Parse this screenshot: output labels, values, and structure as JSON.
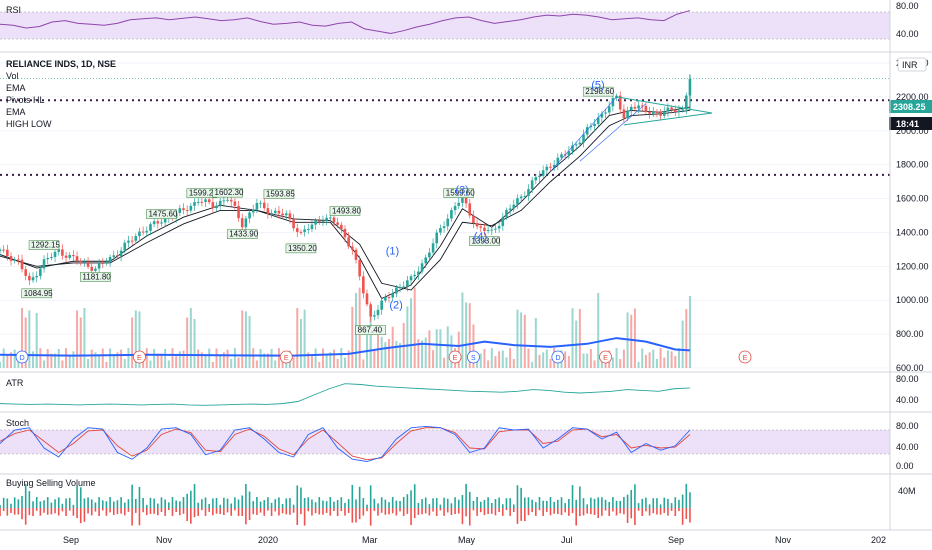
{
  "chart_data": {
    "type": "candlestick",
    "symbol_label": "RELIANCE INDS, 1D, NSE",
    "overlay_legend": [
      "Vol",
      "EMA",
      "Pivots HL",
      "EMA",
      "HIGH LOW"
    ],
    "currency_label": "INR",
    "last_price": "2308.25",
    "countdown": "18:41",
    "price_axis": {
      "ticks": [
        "2400.00",
        "2200.00",
        "2000.00",
        "1800.00",
        "1600.00",
        "1400.00",
        "1200.00",
        "1000.00",
        "800.00",
        "600.00"
      ],
      "range": [
        600,
        2400
      ]
    },
    "time_axis": {
      "ticks": [
        "Sep",
        "Nov",
        "2020",
        "Mar",
        "May",
        "Jul",
        "Sep",
        "Nov",
        "202"
      ]
    },
    "price_path": [
      {
        "t": 0,
        "c": 1290
      },
      {
        "t": 5,
        "c": 1230
      },
      {
        "t": 8,
        "c": 1100
      },
      {
        "t": 12,
        "c": 1230
      },
      {
        "t": 16,
        "c": 1290
      },
      {
        "t": 22,
        "c": 1225
      },
      {
        "t": 26,
        "c": 1185
      },
      {
        "t": 32,
        "c": 1280
      },
      {
        "t": 38,
        "c": 1400
      },
      {
        "t": 44,
        "c": 1470
      },
      {
        "t": 50,
        "c": 1530
      },
      {
        "t": 54,
        "c": 1590
      },
      {
        "t": 58,
        "c": 1560
      },
      {
        "t": 62,
        "c": 1600
      },
      {
        "t": 64,
        "c": 1540
      },
      {
        "t": 66,
        "c": 1450
      },
      {
        "t": 70,
        "c": 1570
      },
      {
        "t": 74,
        "c": 1520
      },
      {
        "t": 78,
        "c": 1500
      },
      {
        "t": 82,
        "c": 1390
      },
      {
        "t": 86,
        "c": 1460
      },
      {
        "t": 88,
        "c": 1490
      },
      {
        "t": 92,
        "c": 1450
      },
      {
        "t": 96,
        "c": 1300
      },
      {
        "t": 99,
        "c": 1050
      },
      {
        "t": 101,
        "c": 900
      },
      {
        "t": 104,
        "c": 980
      },
      {
        "t": 108,
        "c": 1070
      },
      {
        "t": 112,
        "c": 1120
      },
      {
        "t": 116,
        "c": 1250
      },
      {
        "t": 120,
        "c": 1420
      },
      {
        "t": 124,
        "c": 1560
      },
      {
        "t": 126,
        "c": 1600
      },
      {
        "t": 130,
        "c": 1430
      },
      {
        "t": 134,
        "c": 1400
      },
      {
        "t": 138,
        "c": 1520
      },
      {
        "t": 142,
        "c": 1610
      },
      {
        "t": 146,
        "c": 1720
      },
      {
        "t": 150,
        "c": 1800
      },
      {
        "t": 154,
        "c": 1860
      },
      {
        "t": 158,
        "c": 1950
      },
      {
        "t": 162,
        "c": 2050
      },
      {
        "t": 166,
        "c": 2150
      },
      {
        "t": 168,
        "c": 2195
      },
      {
        "t": 170,
        "c": 2080
      },
      {
        "t": 172,
        "c": 2150
      },
      {
        "t": 176,
        "c": 2120
      },
      {
        "t": 180,
        "c": 2100
      },
      {
        "t": 184,
        "c": 2130
      },
      {
        "t": 186,
        "c": 2120
      },
      {
        "t": 188,
        "c": 2308
      }
    ],
    "ema_fast": [
      {
        "t": 0,
        "v": 1270
      },
      {
        "t": 10,
        "v": 1190
      },
      {
        "t": 20,
        "v": 1230
      },
      {
        "t": 30,
        "v": 1230
      },
      {
        "t": 40,
        "v": 1380
      },
      {
        "t": 50,
        "v": 1490
      },
      {
        "t": 60,
        "v": 1560
      },
      {
        "t": 70,
        "v": 1530
      },
      {
        "t": 80,
        "v": 1460
      },
      {
        "t": 90,
        "v": 1460
      },
      {
        "t": 98,
        "v": 1250
      },
      {
        "t": 104,
        "v": 1010
      },
      {
        "t": 112,
        "v": 1090
      },
      {
        "t": 120,
        "v": 1320
      },
      {
        "t": 126,
        "v": 1540
      },
      {
        "t": 134,
        "v": 1430
      },
      {
        "t": 142,
        "v": 1580
      },
      {
        "t": 150,
        "v": 1760
      },
      {
        "t": 158,
        "v": 1910
      },
      {
        "t": 166,
        "v": 2090
      },
      {
        "t": 172,
        "v": 2120
      },
      {
        "t": 180,
        "v": 2110
      },
      {
        "t": 188,
        "v": 2140
      }
    ],
    "ema_slow": [
      {
        "t": 0,
        "v": 1260
      },
      {
        "t": 10,
        "v": 1200
      },
      {
        "t": 20,
        "v": 1220
      },
      {
        "t": 30,
        "v": 1220
      },
      {
        "t": 40,
        "v": 1340
      },
      {
        "t": 50,
        "v": 1450
      },
      {
        "t": 60,
        "v": 1530
      },
      {
        "t": 70,
        "v": 1530
      },
      {
        "t": 80,
        "v": 1480
      },
      {
        "t": 90,
        "v": 1470
      },
      {
        "t": 98,
        "v": 1330
      },
      {
        "t": 104,
        "v": 1100
      },
      {
        "t": 112,
        "v": 1060
      },
      {
        "t": 120,
        "v": 1240
      },
      {
        "t": 126,
        "v": 1460
      },
      {
        "t": 134,
        "v": 1440
      },
      {
        "t": 142,
        "v": 1530
      },
      {
        "t": 150,
        "v": 1700
      },
      {
        "t": 158,
        "v": 1850
      },
      {
        "t": 166,
        "v": 2030
      },
      {
        "t": 172,
        "v": 2090
      },
      {
        "t": 180,
        "v": 2100
      },
      {
        "t": 188,
        "v": 2120
      }
    ],
    "pivot_labels": [
      {
        "t": 10,
        "v": 1084.95,
        "text": "1084.95",
        "pos": "below"
      },
      {
        "t": 12,
        "v": 1292.15,
        "text": "1292.15",
        "pos": "above"
      },
      {
        "t": 26,
        "v": 1181.8,
        "text": "1181.80",
        "pos": "below"
      },
      {
        "t": 44,
        "v": 1475.6,
        "text": "1475.60",
        "pos": "above"
      },
      {
        "t": 55,
        "v": 1599.25,
        "text": "1599.25",
        "pos": "above"
      },
      {
        "t": 62,
        "v": 1602.3,
        "text": "1602.30",
        "pos": "above"
      },
      {
        "t": 66,
        "v": 1433.9,
        "text": "1433.90",
        "pos": "below"
      },
      {
        "t": 76,
        "v": 1593.85,
        "text": "1593.85",
        "pos": "above"
      },
      {
        "t": 82,
        "v": 1350.2,
        "text": "1350.20",
        "pos": "below"
      },
      {
        "t": 94,
        "v": 1493.8,
        "text": "1493.80",
        "pos": "above"
      },
      {
        "t": 101,
        "v": 867.4,
        "text": "867.40",
        "pos": "below"
      },
      {
        "t": 125,
        "v": 1599.6,
        "text": "1599.60",
        "pos": "above"
      },
      {
        "t": 132,
        "v": 1393.0,
        "text": "1393.00",
        "pos": "below"
      },
      {
        "t": 163,
        "v": 2198.6,
        "text": "2198.60",
        "pos": "above"
      }
    ],
    "wave_labels": [
      {
        "t": 107,
        "v": 1270,
        "text": "(1)"
      },
      {
        "t": 108,
        "v": 950,
        "text": "(2)"
      },
      {
        "t": 126,
        "v": 1630,
        "text": "(3)"
      },
      {
        "t": 131,
        "v": 1355,
        "text": "(4)"
      },
      {
        "t": 163,
        "v": 2250,
        "text": "(5)"
      }
    ],
    "support_resistance_levels": [
      2180,
      1740
    ],
    "volume_ma_line": [
      {
        "t": 0,
        "v": 0.3
      },
      {
        "t": 20,
        "v": 0.28
      },
      {
        "t": 40,
        "v": 0.3
      },
      {
        "t": 60,
        "v": 0.29
      },
      {
        "t": 80,
        "v": 0.28
      },
      {
        "t": 95,
        "v": 0.32
      },
      {
        "t": 105,
        "v": 0.45
      },
      {
        "t": 115,
        "v": 0.55
      },
      {
        "t": 125,
        "v": 0.5
      },
      {
        "t": 132,
        "v": 0.6
      },
      {
        "t": 140,
        "v": 0.52
      },
      {
        "t": 150,
        "v": 0.48
      },
      {
        "t": 160,
        "v": 0.55
      },
      {
        "t": 168,
        "v": 0.68
      },
      {
        "t": 176,
        "v": 0.6
      },
      {
        "t": 184,
        "v": 0.42
      },
      {
        "t": 188,
        "v": 0.4
      }
    ],
    "event_badges": [
      {
        "t": 6,
        "text": "D",
        "color": "#2962ff"
      },
      {
        "t": 38,
        "text": "E",
        "color": "#e0483f"
      },
      {
        "t": 78,
        "text": "E",
        "color": "#e0483f"
      },
      {
        "t": 124,
        "text": "E",
        "color": "#e0483f"
      },
      {
        "t": 129,
        "text": "S",
        "color": "#2962ff"
      },
      {
        "t": 152,
        "text": "D",
        "color": "#2962ff"
      },
      {
        "t": 165,
        "text": "E",
        "color": "#e0483f"
      },
      {
        "t": 203,
        "text": "E",
        "color": "#e0483f"
      }
    ],
    "rsi": {
      "label": "RSI",
      "ticks": [
        "80.00",
        "40.00"
      ],
      "band": [
        70,
        30
      ],
      "path": [
        50,
        48,
        42,
        45,
        55,
        58,
        52,
        50,
        48,
        52,
        60,
        62,
        64,
        60,
        63,
        66,
        62,
        58,
        60,
        64,
        56,
        50,
        52,
        55,
        48,
        46,
        52,
        55,
        40,
        35,
        30,
        36,
        44,
        50,
        58,
        64,
        66,
        58,
        52,
        56,
        60,
        66,
        70,
        68,
        72,
        70,
        66,
        60,
        62,
        64,
        60,
        58,
        72,
        80
      ]
    },
    "atr": {
      "label": "ATR",
      "ticks": [
        "80.00",
        "40.00"
      ],
      "range": [
        20,
        100
      ],
      "path": [
        35,
        34,
        33,
        34,
        33,
        32,
        33,
        34,
        33,
        32,
        33,
        34,
        32,
        31,
        32,
        33,
        34,
        33,
        35,
        40,
        55,
        70,
        82,
        80,
        76,
        74,
        72,
        70,
        68,
        66,
        64,
        63,
        62,
        64,
        68,
        66,
        62,
        60,
        62,
        64,
        68,
        66,
        64,
        70,
        72
      ]
    },
    "stoch": {
      "label": "Stoch",
      "ticks": [
        "80.00",
        "40.00",
        "0.00"
      ],
      "band": [
        80,
        20
      ],
      "k_path": [
        50,
        80,
        85,
        40,
        20,
        60,
        85,
        82,
        30,
        15,
        40,
        82,
        85,
        70,
        25,
        35,
        80,
        85,
        60,
        30,
        20,
        70,
        85,
        40,
        15,
        10,
        20,
        60,
        85,
        88,
        85,
        70,
        30,
        40,
        85,
        80,
        82,
        40,
        60,
        85,
        82,
        60,
        75,
        30,
        50,
        35,
        45,
        80
      ],
      "d_path": [
        55,
        72,
        80,
        55,
        30,
        50,
        78,
        80,
        45,
        22,
        35,
        70,
        82,
        74,
        35,
        32,
        70,
        82,
        66,
        38,
        25,
        60,
        80,
        52,
        22,
        14,
        18,
        50,
        78,
        85,
        85,
        74,
        40,
        38,
        76,
        80,
        80,
        50,
        55,
        80,
        82,
        65,
        70,
        40,
        46,
        40,
        42,
        70
      ]
    },
    "buying_selling_volume": {
      "label": "Buying Selling Volume",
      "ticks": [
        "40M"
      ]
    }
  }
}
